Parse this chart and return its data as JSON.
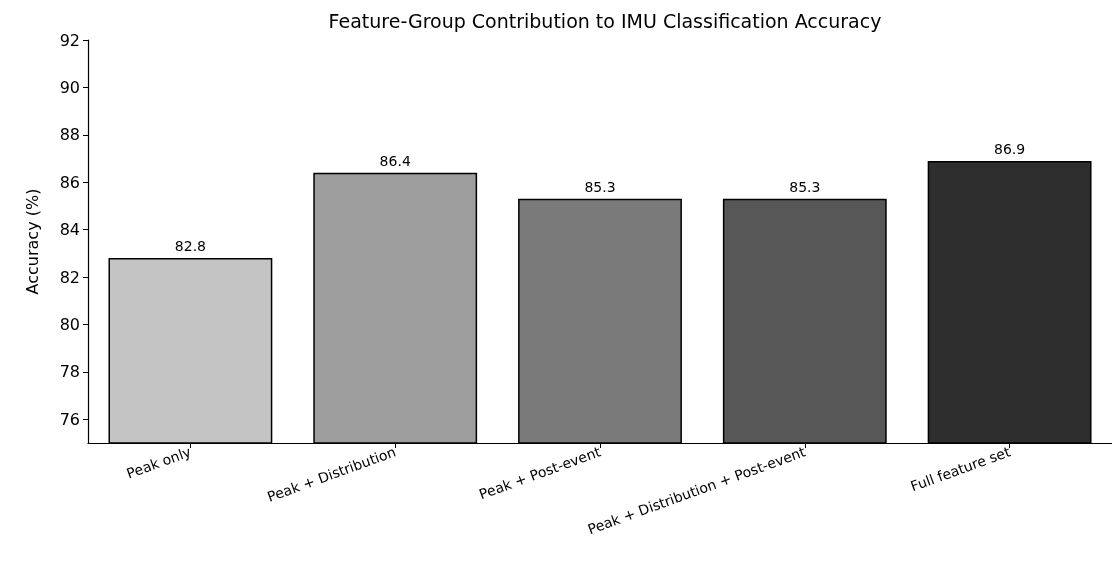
{
  "chart_data": {
    "type": "bar",
    "title": "Feature-Group Contribution to IMU Classification Accuracy",
    "ylabel": "Accuracy (%)",
    "categories": [
      "Peak only",
      "Peak + Distribution",
      "Peak + Post-event",
      "Peak + Distribution + Post-event",
      "Full feature set"
    ],
    "values": [
      82.8,
      86.4,
      85.3,
      85.3,
      86.9
    ],
    "colors": [
      "#c4c4c4",
      "#9e9e9e",
      "#7a7a7a",
      "#575757",
      "#2e2e2e"
    ],
    "ylim": [
      75,
      92
    ],
    "yticks": [
      76,
      78,
      80,
      82,
      84,
      86,
      88,
      90,
      92
    ],
    "data_labels": true
  }
}
